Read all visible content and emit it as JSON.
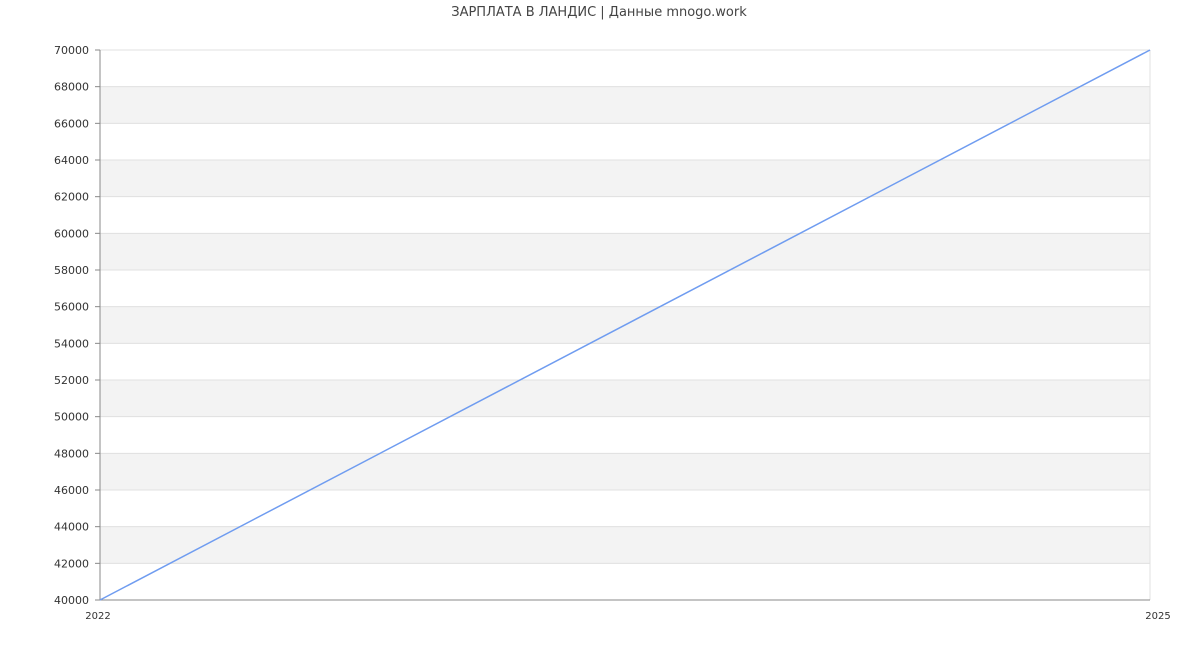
{
  "chart_data": {
    "type": "line",
    "title": "ЗАРПЛАТА В  ЛАНДИС | Данные mnogo.work",
    "xlabel": "",
    "ylabel": "",
    "x_ticks": [
      "2022",
      "2025"
    ],
    "xlim": [
      2022,
      2025
    ],
    "ylim": [
      40000,
      70000
    ],
    "y_ticks": [
      40000,
      42000,
      44000,
      46000,
      48000,
      50000,
      52000,
      54000,
      56000,
      58000,
      60000,
      62000,
      64000,
      66000,
      68000,
      70000
    ],
    "grid": true,
    "banded_background": true,
    "series": [
      {
        "x": [
          2022,
          2025
        ],
        "values": [
          40000,
          70000
        ],
        "color": "#6f9cf0"
      }
    ],
    "colors": {
      "band": "#f3f3f3",
      "grid": "#e0e0e0",
      "axis": "#888888",
      "text": "#333333"
    }
  }
}
